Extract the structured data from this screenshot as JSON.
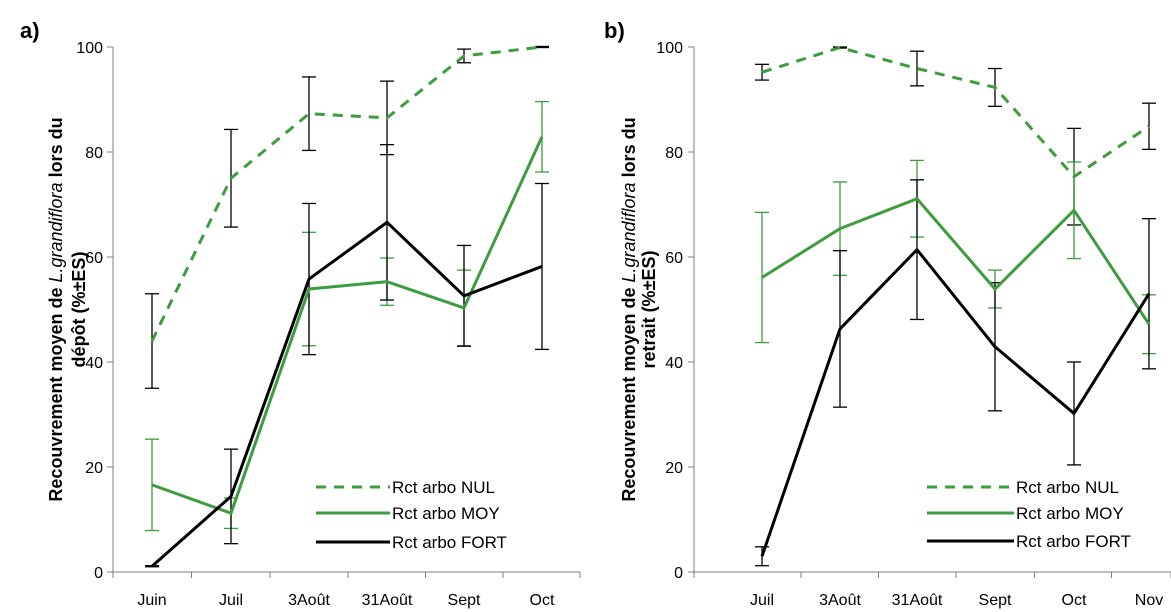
{
  "colors": {
    "nul": "#3e9b3e",
    "moy": "#3e9b3e",
    "fort": "#000000"
  },
  "chart_data": [
    {
      "type": "line",
      "panel_label": "a)",
      "title": "",
      "ylabel_part1": "Recouvrement moyen de",
      "ylabel_italic": "L.grandiflora",
      "ylabel_part2": "lors du",
      "ylabel_line2": "dépôt (%±ES)",
      "categories": [
        "Juin",
        "Juil",
        "3Août",
        "31Août",
        "Sept",
        "Oct"
      ],
      "ylim": [
        0,
        100
      ],
      "yticks": [
        0,
        20,
        40,
        60,
        80,
        100
      ],
      "grid": false,
      "legend_position": "bottom-right",
      "series": [
        {
          "name": "Rct arbo NUL",
          "style": "dashed",
          "color": "#3e9b3e",
          "error_color": "#000000",
          "values": [
            44,
            75,
            87.3,
            86.5,
            98.3,
            100
          ],
          "errors": [
            9,
            9.3,
            7,
            7,
            1.3,
            0.1
          ]
        },
        {
          "name": "Rct arbo MOY",
          "style": "solid",
          "color": "#3e9b3e",
          "error_color": "#3e9b3e",
          "values": [
            16.6,
            11.2,
            53.9,
            55.3,
            50.3,
            82.9
          ],
          "errors": [
            8.7,
            2.9,
            10.8,
            4.5,
            7.2,
            6.7
          ]
        },
        {
          "name": "Rct arbo FORT",
          "style": "solid",
          "color": "#000000",
          "error_color": "#000000",
          "values": [
            1.1,
            14.4,
            55.8,
            66.6,
            52.6,
            58.2
          ],
          "errors": [
            0.1,
            9,
            14.4,
            14.8,
            9.6,
            15.8
          ]
        }
      ]
    },
    {
      "type": "line",
      "panel_label": "b)",
      "title": "",
      "ylabel_part1": "Recouvrement moyen de",
      "ylabel_italic": "L.grandiflora",
      "ylabel_part2": "lors du",
      "ylabel_line2": "retrait (%±ES)",
      "categories": [
        "Juil",
        "3Août",
        "31Août",
        "Sept",
        "Oct",
        "Nov"
      ],
      "ylim": [
        0,
        100
      ],
      "yticks": [
        0,
        20,
        40,
        60,
        80,
        100
      ],
      "grid": false,
      "legend_position": "bottom-right",
      "series": [
        {
          "name": "Rct arbo NUL",
          "style": "dashed",
          "color": "#3e9b3e",
          "error_color": "#000000",
          "values": [
            95.2,
            99.9,
            95.9,
            92.3,
            75.3,
            84.9
          ],
          "errors": [
            1.5,
            0.1,
            3.3,
            3.6,
            9.2,
            4.4
          ]
        },
        {
          "name": "Rct arbo MOY",
          "style": "solid",
          "color": "#3e9b3e",
          "error_color": "#3e9b3e",
          "values": [
            56.1,
            65.4,
            71.1,
            53.9,
            68.9,
            47.2
          ],
          "errors": [
            12.4,
            8.9,
            7.3,
            3.6,
            9.2,
            5.6
          ]
        },
        {
          "name": "Rct arbo FORT",
          "style": "solid",
          "color": "#000000",
          "error_color": "#000000",
          "values": [
            3,
            46.3,
            61.4,
            42.9,
            30.2,
            53
          ],
          "errors": [
            1.8,
            14.9,
            13.3,
            12.2,
            9.8,
            14.3
          ]
        }
      ]
    }
  ]
}
